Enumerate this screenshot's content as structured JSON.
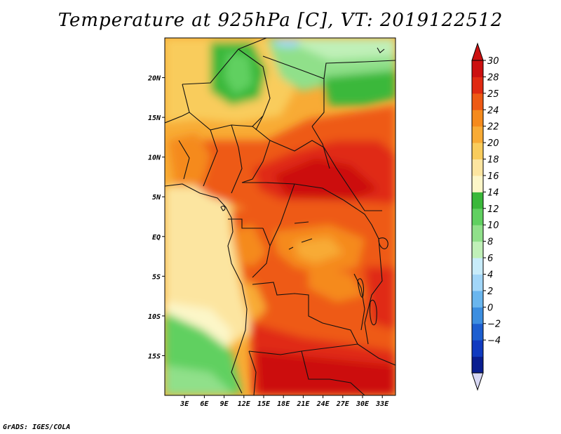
{
  "title": "Temperature at 925hPa [C], VT: 2019122512",
  "credit": "GrADS: IGES/COLA",
  "map": {
    "lon_range": [
      0,
      35
    ],
    "lat_range": [
      -20,
      25
    ],
    "x_ticks": [
      {
        "lon": 3,
        "label": "3E"
      },
      {
        "lon": 6,
        "label": "6E"
      },
      {
        "lon": 9,
        "label": "9E"
      },
      {
        "lon": 12,
        "label": "12E"
      },
      {
        "lon": 15,
        "label": "15E"
      },
      {
        "lon": 18,
        "label": "18E"
      },
      {
        "lon": 21,
        "label": "21E"
      },
      {
        "lon": 24,
        "label": "24E"
      },
      {
        "lon": 27,
        "label": "27E"
      },
      {
        "lon": 30,
        "label": "30E"
      },
      {
        "lon": 33,
        "label": "33E"
      }
    ],
    "y_ticks": [
      {
        "lat": 20,
        "label": "20N"
      },
      {
        "lat": 15,
        "label": "15N"
      },
      {
        "lat": 10,
        "label": "10N"
      },
      {
        "lat": 5,
        "label": "5N"
      },
      {
        "lat": 0,
        "label": "EQ"
      },
      {
        "lat": -5,
        "label": "5S"
      },
      {
        "lat": -10,
        "label": "10S"
      },
      {
        "lat": -15,
        "label": "15S"
      }
    ]
  },
  "colorbar": {
    "levels": [
      "30",
      "28",
      "25",
      "24",
      "22",
      "20",
      "18",
      "16",
      "14",
      "12",
      "10",
      "8",
      "6",
      "4",
      "2",
      "0",
      "−2",
      "−4"
    ],
    "colors": [
      "#cc1010",
      "#e02a12",
      "#ee5a14",
      "#f58a1c",
      "#f8ab35",
      "#f9cc5c",
      "#fce5a0",
      "#fcf6c8",
      "#3ab83a",
      "#60d060",
      "#90e08a",
      "#c0f0b8",
      "#c8ecfa",
      "#a2d6f8",
      "#6ab6ee",
      "#3c8ee0",
      "#1c5ed0",
      "#103ac0",
      "#0a1e90"
    ],
    "top_triangle_color": "#cc1010",
    "bottom_triangle_color": "#d8d8f4"
  }
}
